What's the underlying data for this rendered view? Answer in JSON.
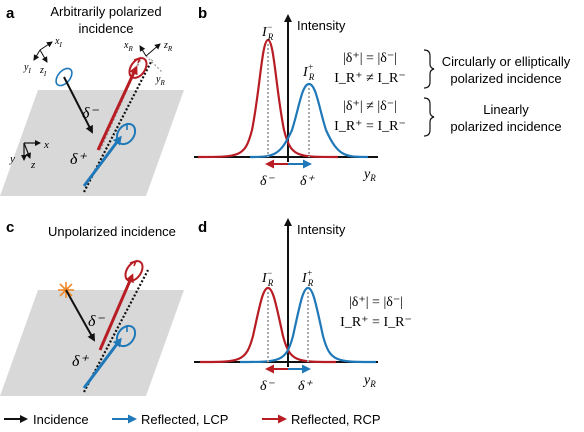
{
  "panels": {
    "a": {
      "letter": "a",
      "title_line1": "Arbitrarily polarized",
      "title_line2": "incidence",
      "axes": {
        "xI": "x",
        "xI_sub": "I",
        "yI": "y",
        "yI_sub": "I",
        "zI": "z",
        "zI_sub": "I",
        "xR": "x",
        "xR_sub": "R",
        "yR": "y",
        "yR_sub": "R",
        "zR": "z",
        "zR_sub": "R",
        "x": "x",
        "y": "y",
        "z": "z"
      },
      "delta_minus": "δ⁻",
      "delta_plus": "δ⁺"
    },
    "b": {
      "letter": "b",
      "intensity": "Intensity",
      "peak_minus": "I",
      "peak_minus_sup": "−",
      "peak_minus_sub": "R",
      "peak_plus": "I",
      "peak_plus_sup": "+",
      "peak_plus_sub": "R",
      "axis_label": "y",
      "axis_label_sub": "R",
      "shift_minus": "δ⁻",
      "shift_plus": "δ⁺",
      "case1_eq1": "|δ⁺| = |δ⁻|",
      "case1_eq2": "I_R⁺ ≠ I_R⁻",
      "case1_text_line1": "Circularly or elliptically",
      "case1_text_line2": "polarized incidence",
      "case2_eq1": "|δ⁺| ≠ |δ⁻|",
      "case2_eq2": "I_R⁺ = I_R⁻",
      "case2_text_line1": "Linearly",
      "case2_text_line2": "polarized incidence"
    },
    "c": {
      "letter": "c",
      "title": "Unpolarized incidence",
      "delta_minus": "δ⁻",
      "delta_plus": "δ⁺"
    },
    "d": {
      "letter": "d",
      "intensity": "Intensity",
      "axis_label": "y",
      "axis_label_sub": "R",
      "shift_minus": "δ⁻",
      "shift_plus": "δ⁺",
      "eq1": "|δ⁺| = |δ⁻|",
      "eq2": "I_R⁺ = I_R⁻"
    }
  },
  "legend": {
    "incidence": "Incidence",
    "lcp": "Reflected, LCP",
    "rcp": "Reflected, RCP"
  },
  "colors": {
    "red": "#b81d24",
    "blue": "#1f78b8",
    "black": "#111111",
    "gray_plane": "#d8d8d8",
    "orange_star": "#f08a2a"
  }
}
